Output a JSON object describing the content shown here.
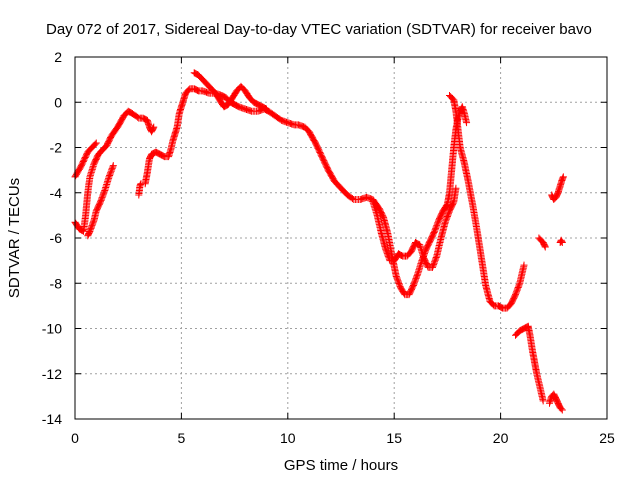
{
  "chart_data": {
    "type": "scatter",
    "title": "Day 072 of 2017, Sidereal Day-to-day VTEC variation (SDTVAR) for receiver bavo",
    "xlabel": "GPS time / hours",
    "ylabel": "SDTVAR / TECUs",
    "xlim": [
      0,
      25
    ],
    "ylim": [
      -14,
      2
    ],
    "x_ticks": [
      0,
      5,
      10,
      15,
      20,
      25
    ],
    "y_ticks": [
      2,
      0,
      -2,
      -4,
      -6,
      -8,
      -10,
      -12,
      -14
    ],
    "x_tick_labels": [
      "0",
      "5",
      "10",
      "15",
      "20",
      "25"
    ],
    "y_tick_labels": [
      "2",
      "0",
      "-2",
      "-4",
      "-6",
      "-8",
      "-10",
      "-12",
      "-14"
    ],
    "grid": true,
    "legend": "none",
    "marker": "+",
    "color": "#ff0000",
    "segments": [
      [
        [
          0.0,
          -3.3
        ],
        [
          0.3,
          -2.8
        ],
        [
          0.6,
          -2.2
        ],
        [
          0.9,
          -1.9
        ],
        [
          1.0,
          -1.8
        ]
      ],
      [
        [
          0.0,
          -5.3
        ],
        [
          0.2,
          -5.6
        ],
        [
          0.4,
          -5.7
        ],
        [
          0.5,
          -5.0
        ],
        [
          0.6,
          -4.0
        ],
        [
          0.7,
          -3.3
        ],
        [
          0.9,
          -2.7
        ],
        [
          1.1,
          -2.3
        ],
        [
          1.3,
          -2.1
        ],
        [
          1.5,
          -1.9
        ],
        [
          1.7,
          -1.5
        ],
        [
          2.0,
          -1.1
        ],
        [
          2.3,
          -0.6
        ],
        [
          2.5,
          -0.4
        ],
        [
          2.7,
          -0.5
        ],
        [
          3.0,
          -0.7
        ],
        [
          3.2,
          -0.7
        ],
        [
          3.4,
          -0.8
        ],
        [
          3.5,
          -1.1
        ],
        [
          3.6,
          -1.3
        ],
        [
          3.7,
          -1.1
        ]
      ],
      [
        [
          0.6,
          -5.9
        ],
        [
          0.7,
          -5.7
        ],
        [
          0.9,
          -5.2
        ],
        [
          1.0,
          -4.8
        ],
        [
          1.2,
          -4.4
        ],
        [
          1.4,
          -3.9
        ],
        [
          1.6,
          -3.3
        ],
        [
          1.8,
          -2.8
        ]
      ],
      [
        [
          3.0,
          -4.1
        ],
        [
          3.05,
          -3.7
        ],
        [
          3.1,
          -3.6
        ]
      ],
      [
        [
          3.3,
          -3.6
        ],
        [
          3.4,
          -3.1
        ],
        [
          3.5,
          -2.5
        ],
        [
          3.6,
          -2.3
        ],
        [
          3.8,
          -2.2
        ],
        [
          4.0,
          -2.3
        ],
        [
          4.2,
          -2.4
        ],
        [
          4.4,
          -2.4
        ],
        [
          4.5,
          -2.1
        ],
        [
          4.6,
          -1.7
        ],
        [
          4.7,
          -1.4
        ],
        [
          4.8,
          -1.1
        ],
        [
          4.9,
          -0.5
        ],
        [
          5.0,
          -0.2
        ],
        [
          5.1,
          0.1
        ],
        [
          5.2,
          0.4
        ],
        [
          5.4,
          0.6
        ],
        [
          5.6,
          0.6
        ],
        [
          5.8,
          0.5
        ],
        [
          6.0,
          0.5
        ],
        [
          6.3,
          0.4
        ],
        [
          6.6,
          0.4
        ],
        [
          6.9,
          0.3
        ],
        [
          7.1,
          0.2
        ],
        [
          7.3,
          0.0
        ],
        [
          7.5,
          -0.1
        ],
        [
          7.7,
          -0.2
        ],
        [
          8.0,
          -0.3
        ],
        [
          8.3,
          -0.4
        ],
        [
          8.6,
          -0.4
        ],
        [
          8.9,
          -0.3
        ],
        [
          9.1,
          -0.4
        ],
        [
          9.4,
          -0.6
        ],
        [
          9.7,
          -0.8
        ],
        [
          10.0,
          -0.9
        ],
        [
          10.3,
          -1.0
        ],
        [
          10.5,
          -1.0
        ],
        [
          10.8,
          -1.1
        ],
        [
          11.0,
          -1.3
        ],
        [
          11.3,
          -1.8
        ],
        [
          11.6,
          -2.4
        ],
        [
          11.9,
          -3.0
        ],
        [
          12.2,
          -3.5
        ],
        [
          12.5,
          -3.8
        ],
        [
          12.8,
          -4.1
        ],
        [
          13.1,
          -4.3
        ],
        [
          13.4,
          -4.3
        ],
        [
          13.7,
          -4.2
        ],
        [
          14.0,
          -4.3
        ],
        [
          14.3,
          -4.7
        ],
        [
          14.5,
          -5.1
        ],
        [
          14.7,
          -5.8
        ],
        [
          14.9,
          -6.8
        ],
        [
          15.1,
          -7.7
        ],
        [
          15.3,
          -8.2
        ],
        [
          15.5,
          -8.5
        ],
        [
          15.7,
          -8.5
        ],
        [
          15.9,
          -8.1
        ],
        [
          16.1,
          -7.6
        ],
        [
          16.3,
          -7.0
        ],
        [
          16.5,
          -6.5
        ],
        [
          16.7,
          -6.1
        ],
        [
          16.9,
          -5.7
        ],
        [
          17.1,
          -5.2
        ],
        [
          17.3,
          -4.8
        ],
        [
          17.5,
          -4.5
        ],
        [
          17.6,
          -4.0
        ],
        [
          17.7,
          -3.0
        ],
        [
          17.8,
          -2.0
        ],
        [
          17.9,
          -1.2
        ],
        [
          18.0,
          -0.7
        ],
        [
          18.1,
          -0.4
        ],
        [
          18.2,
          -0.2
        ],
        [
          18.3,
          -0.5
        ],
        [
          18.4,
          -0.9
        ]
      ],
      [
        [
          5.6,
          1.3
        ],
        [
          5.8,
          1.2
        ],
        [
          6.0,
          1.0
        ],
        [
          6.2,
          0.8
        ],
        [
          6.4,
          0.6
        ],
        [
          6.6,
          0.4
        ],
        [
          6.8,
          0.1
        ],
        [
          7.0,
          -0.2
        ],
        [
          7.2,
          -0.1
        ],
        [
          7.4,
          0.2
        ],
        [
          7.6,
          0.5
        ],
        [
          7.8,
          0.7
        ],
        [
          8.0,
          0.5
        ],
        [
          8.2,
          0.2
        ],
        [
          8.4,
          0.0
        ],
        [
          8.6,
          -0.1
        ],
        [
          8.8,
          -0.2
        ],
        [
          9.0,
          -0.3
        ]
      ],
      [
        [
          14.0,
          -4.4
        ],
        [
          14.2,
          -5.0
        ],
        [
          14.4,
          -5.8
        ],
        [
          14.6,
          -6.5
        ],
        [
          14.8,
          -7.0
        ],
        [
          15.0,
          -7.0
        ],
        [
          15.2,
          -6.7
        ],
        [
          15.4,
          -6.8
        ],
        [
          15.6,
          -6.8
        ],
        [
          15.8,
          -6.6
        ],
        [
          16.0,
          -6.2
        ],
        [
          16.2,
          -6.3
        ],
        [
          16.4,
          -6.9
        ],
        [
          16.6,
          -7.3
        ],
        [
          16.8,
          -7.3
        ],
        [
          17.0,
          -6.8
        ],
        [
          17.2,
          -6.0
        ],
        [
          17.4,
          -5.3
        ],
        [
          17.6,
          -4.8
        ],
        [
          17.8,
          -4.4
        ],
        [
          17.9,
          -3.8
        ]
      ],
      [
        [
          17.6,
          0.3
        ],
        [
          17.8,
          0.1
        ],
        [
          17.9,
          -0.4
        ],
        [
          18.0,
          -1.2
        ],
        [
          18.1,
          -2.0
        ],
        [
          18.3,
          -2.7
        ],
        [
          18.5,
          -3.6
        ],
        [
          18.7,
          -4.6
        ],
        [
          18.9,
          -5.7
        ],
        [
          19.1,
          -6.9
        ],
        [
          19.3,
          -8.1
        ],
        [
          19.5,
          -8.8
        ],
        [
          19.7,
          -9.0
        ],
        [
          19.9,
          -9.0
        ],
        [
          20.1,
          -9.1
        ],
        [
          20.3,
          -9.1
        ],
        [
          20.5,
          -8.9
        ],
        [
          20.7,
          -8.5
        ],
        [
          20.9,
          -8.0
        ],
        [
          21.0,
          -7.6
        ],
        [
          21.1,
          -7.2
        ]
      ],
      [
        [
          20.7,
          -10.3
        ],
        [
          20.9,
          -10.1
        ],
        [
          21.1,
          -10.0
        ],
        [
          21.3,
          -9.9
        ],
        [
          21.4,
          -10.4
        ],
        [
          21.5,
          -11.0
        ],
        [
          21.6,
          -11.5
        ],
        [
          21.7,
          -12.0
        ],
        [
          21.8,
          -12.4
        ],
        [
          21.9,
          -12.8
        ],
        [
          22.0,
          -13.2
        ]
      ],
      [
        [
          21.8,
          -6.0
        ],
        [
          22.0,
          -6.2
        ],
        [
          22.1,
          -6.4
        ]
      ],
      [
        [
          22.3,
          -13.3
        ],
        [
          22.4,
          -13.0
        ],
        [
          22.5,
          -12.9
        ],
        [
          22.6,
          -13.1
        ],
        [
          22.7,
          -13.3
        ],
        [
          22.8,
          -13.5
        ],
        [
          22.9,
          -13.6
        ]
      ],
      [
        [
          22.4,
          -4.1
        ],
        [
          22.5,
          -4.3
        ],
        [
          22.6,
          -4.2
        ],
        [
          22.7,
          -4.0
        ],
        [
          22.8,
          -3.7
        ],
        [
          22.9,
          -3.4
        ],
        [
          22.95,
          -3.3
        ]
      ],
      [
        [
          22.8,
          -6.2
        ],
        [
          22.85,
          -6.1
        ],
        [
          22.9,
          -6.2
        ]
      ]
    ]
  }
}
